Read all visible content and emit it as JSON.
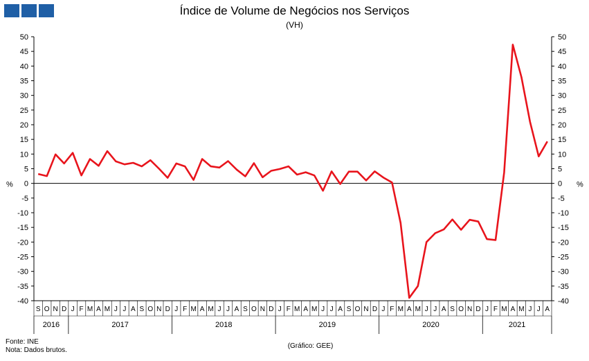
{
  "header": {
    "title": "Índice de Volume de Negócios nos Serviços",
    "subtitle": "(VH)",
    "logo_color": "#1f5fa6"
  },
  "footer": {
    "source": "Fonte: INE",
    "note": "Nota: Dados brutos.",
    "credit": "(Gráfico: GEE)"
  },
  "chart_data": {
    "type": "line",
    "title": "Índice de Volume de Negócios nos Serviços",
    "subtitle": "(VH)",
    "ylabel": "%",
    "ylim": [
      -40,
      50
    ],
    "yticks": [
      50,
      45,
      40,
      35,
      30,
      25,
      20,
      15,
      10,
      5,
      0,
      -5,
      -10,
      -15,
      -20,
      -25,
      -30,
      -35,
      -40
    ],
    "grid": false,
    "line_color": "#e8141c",
    "month_labels": [
      "S",
      "O",
      "N",
      "D",
      "J",
      "F",
      "M",
      "A",
      "M",
      "J",
      "J",
      "A",
      "S",
      "O",
      "N",
      "D",
      "J",
      "F",
      "M",
      "A",
      "M",
      "J",
      "J",
      "A",
      "S",
      "O",
      "N",
      "D",
      "J",
      "F",
      "M",
      "A",
      "M",
      "J",
      "J",
      "A",
      "S",
      "O",
      "N",
      "D",
      "J",
      "F",
      "M",
      "A",
      "M",
      "J",
      "J",
      "A",
      "S",
      "O",
      "N",
      "D",
      "J",
      "F",
      "M",
      "A",
      "M",
      "J",
      "J",
      "A"
    ],
    "year_labels": [
      "2016",
      "2017",
      "2018",
      "2019",
      "2020",
      "2021"
    ],
    "year_month_counts": [
      4,
      12,
      12,
      12,
      12,
      8
    ],
    "series": [
      {
        "values": [
          3.2,
          2.5,
          9.9,
          6.8,
          10.4,
          2.7,
          8.3,
          6.0,
          11.0,
          7.5,
          6.5,
          7.0,
          5.8,
          7.9,
          5.0,
          1.9,
          6.8,
          5.8,
          1.2,
          8.3,
          5.8,
          5.4,
          7.6,
          4.7,
          2.4,
          6.9,
          2.1,
          4.3,
          4.9,
          5.8,
          3.0,
          3.8,
          2.7,
          -2.5,
          4.1,
          -0.2,
          4.0,
          4.0,
          1.0,
          4.1,
          2.0,
          0.3,
          -13.5,
          -39.0,
          -35.0,
          -20.0,
          -17.0,
          -15.7,
          -12.3,
          -15.8,
          -12.4,
          -13.0,
          -19.0,
          -19.3,
          3.7,
          47.3,
          36.2,
          21.0,
          9.2,
          14.3
        ]
      }
    ]
  }
}
